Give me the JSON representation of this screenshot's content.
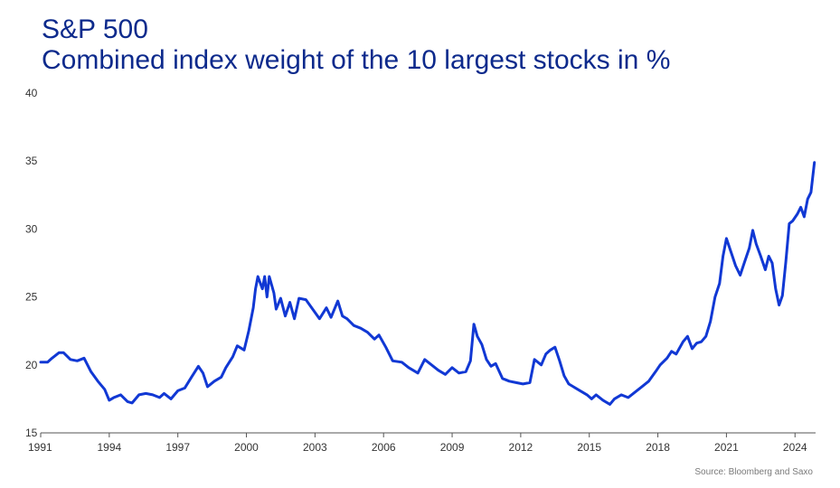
{
  "title_lines": [
    "S&P 500",
    "Combined index weight of the 10 largest stocks in %"
  ],
  "source": "Source: Bloomberg and Saxo",
  "colors": {
    "line": "#1138d4",
    "title": "#0d2a8c",
    "axis": "#555555",
    "text": "#333333"
  },
  "chart_data": {
    "type": "line",
    "title": "S&P 500",
    "subtitle": "Combined index weight of the 10 largest stocks in %",
    "xlabel": "",
    "ylabel": "",
    "xlim": [
      1991,
      2024.9
    ],
    "ylim": [
      15,
      40
    ],
    "grid": false,
    "x_ticks": [
      1991,
      1994,
      1997,
      2000,
      2003,
      2006,
      2009,
      2012,
      2015,
      2018,
      2021,
      2024
    ],
    "y_ticks": [
      15,
      20,
      25,
      30,
      35,
      40
    ],
    "series": [
      {
        "name": "",
        "points": [
          [
            1991.0,
            20.2
          ],
          [
            1991.3,
            20.2
          ],
          [
            1991.5,
            20.5
          ],
          [
            1991.8,
            20.9
          ],
          [
            1992.0,
            20.9
          ],
          [
            1992.3,
            20.4
          ],
          [
            1992.6,
            20.3
          ],
          [
            1992.9,
            20.5
          ],
          [
            1993.2,
            19.5
          ],
          [
            1993.5,
            18.8
          ],
          [
            1993.8,
            18.2
          ],
          [
            1994.0,
            17.4
          ],
          [
            1994.2,
            17.6
          ],
          [
            1994.5,
            17.8
          ],
          [
            1994.8,
            17.3
          ],
          [
            1995.0,
            17.2
          ],
          [
            1995.3,
            17.8
          ],
          [
            1995.6,
            17.9
          ],
          [
            1995.9,
            17.8
          ],
          [
            1996.2,
            17.6
          ],
          [
            1996.4,
            17.9
          ],
          [
            1996.7,
            17.5
          ],
          [
            1997.0,
            18.1
          ],
          [
            1997.3,
            18.3
          ],
          [
            1997.6,
            19.1
          ],
          [
            1997.9,
            19.9
          ],
          [
            1998.1,
            19.4
          ],
          [
            1998.3,
            18.4
          ],
          [
            1998.6,
            18.8
          ],
          [
            1998.9,
            19.1
          ],
          [
            1999.1,
            19.8
          ],
          [
            1999.4,
            20.6
          ],
          [
            1999.6,
            21.4
          ],
          [
            1999.9,
            21.1
          ],
          [
            2000.1,
            22.5
          ],
          [
            2000.3,
            24.2
          ],
          [
            2000.4,
            25.6
          ],
          [
            2000.5,
            26.5
          ],
          [
            2000.7,
            25.6
          ],
          [
            2000.8,
            26.5
          ],
          [
            2000.9,
            25.0
          ],
          [
            2001.0,
            26.5
          ],
          [
            2001.2,
            25.3
          ],
          [
            2001.3,
            24.1
          ],
          [
            2001.5,
            24.9
          ],
          [
            2001.7,
            23.6
          ],
          [
            2001.9,
            24.6
          ],
          [
            2002.1,
            23.4
          ],
          [
            2002.3,
            24.9
          ],
          [
            2002.6,
            24.8
          ],
          [
            2002.9,
            24.1
          ],
          [
            2003.2,
            23.4
          ],
          [
            2003.5,
            24.2
          ],
          [
            2003.7,
            23.5
          ],
          [
            2004.0,
            24.7
          ],
          [
            2004.2,
            23.6
          ],
          [
            2004.4,
            23.4
          ],
          [
            2004.7,
            22.9
          ],
          [
            2005.0,
            22.7
          ],
          [
            2005.3,
            22.4
          ],
          [
            2005.6,
            21.9
          ],
          [
            2005.8,
            22.2
          ],
          [
            2006.1,
            21.3
          ],
          [
            2006.4,
            20.3
          ],
          [
            2006.8,
            20.2
          ],
          [
            2007.1,
            19.8
          ],
          [
            2007.5,
            19.4
          ],
          [
            2007.8,
            20.4
          ],
          [
            2008.1,
            20.0
          ],
          [
            2008.4,
            19.6
          ],
          [
            2008.7,
            19.3
          ],
          [
            2009.0,
            19.8
          ],
          [
            2009.3,
            19.4
          ],
          [
            2009.6,
            19.5
          ],
          [
            2009.8,
            20.3
          ],
          [
            2009.95,
            23.0
          ],
          [
            2010.1,
            22.1
          ],
          [
            2010.3,
            21.5
          ],
          [
            2010.5,
            20.4
          ],
          [
            2010.7,
            19.9
          ],
          [
            2010.9,
            20.1
          ],
          [
            2011.2,
            19.0
          ],
          [
            2011.5,
            18.8
          ],
          [
            2011.8,
            18.7
          ],
          [
            2012.1,
            18.6
          ],
          [
            2012.4,
            18.7
          ],
          [
            2012.6,
            20.4
          ],
          [
            2012.9,
            20.0
          ],
          [
            2013.1,
            20.8
          ],
          [
            2013.3,
            21.1
          ],
          [
            2013.5,
            21.3
          ],
          [
            2013.7,
            20.3
          ],
          [
            2013.9,
            19.2
          ],
          [
            2014.1,
            18.6
          ],
          [
            2014.3,
            18.4
          ],
          [
            2014.6,
            18.1
          ],
          [
            2014.9,
            17.8
          ],
          [
            2015.1,
            17.5
          ],
          [
            2015.3,
            17.8
          ],
          [
            2015.6,
            17.4
          ],
          [
            2015.9,
            17.1
          ],
          [
            2016.1,
            17.5
          ],
          [
            2016.4,
            17.8
          ],
          [
            2016.7,
            17.6
          ],
          [
            2017.0,
            18.0
          ],
          [
            2017.3,
            18.4
          ],
          [
            2017.6,
            18.8
          ],
          [
            2017.9,
            19.5
          ],
          [
            2018.1,
            20.0
          ],
          [
            2018.4,
            20.5
          ],
          [
            2018.6,
            21.0
          ],
          [
            2018.8,
            20.8
          ],
          [
            2019.1,
            21.7
          ],
          [
            2019.3,
            22.1
          ],
          [
            2019.5,
            21.2
          ],
          [
            2019.7,
            21.6
          ],
          [
            2019.9,
            21.7
          ],
          [
            2020.1,
            22.1
          ],
          [
            2020.3,
            23.2
          ],
          [
            2020.5,
            25.0
          ],
          [
            2020.7,
            26.0
          ],
          [
            2020.85,
            28.0
          ],
          [
            2021.0,
            29.3
          ],
          [
            2021.2,
            28.3
          ],
          [
            2021.4,
            27.3
          ],
          [
            2021.6,
            26.6
          ],
          [
            2021.8,
            27.6
          ],
          [
            2022.0,
            28.6
          ],
          [
            2022.15,
            29.9
          ],
          [
            2022.3,
            28.9
          ],
          [
            2022.5,
            28.0
          ],
          [
            2022.7,
            27.0
          ],
          [
            2022.85,
            28.0
          ],
          [
            2023.0,
            27.5
          ],
          [
            2023.15,
            25.6
          ],
          [
            2023.3,
            24.4
          ],
          [
            2023.45,
            25.1
          ],
          [
            2023.6,
            27.6
          ],
          [
            2023.75,
            30.4
          ],
          [
            2023.9,
            30.6
          ],
          [
            2024.1,
            31.1
          ],
          [
            2024.25,
            31.6
          ],
          [
            2024.4,
            30.9
          ],
          [
            2024.55,
            32.2
          ],
          [
            2024.7,
            32.7
          ],
          [
            2024.85,
            34.9
          ]
        ]
      }
    ]
  }
}
